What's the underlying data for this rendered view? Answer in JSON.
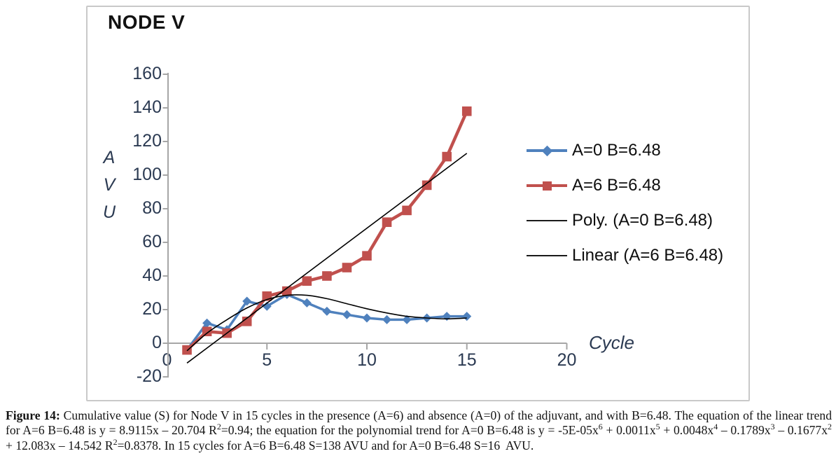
{
  "figure": {
    "caption": [
      {
        "t": "Figure 14:",
        "b": true
      },
      {
        "t": " Cumulative value (S) for Node V in 15 cycles in the presence (A=6) and absence (A=0) of the adjuvant, and with B=6.48. The equation of the linear trend for A=6 B=6.48 is y = 8.9115x – 20.704 R"
      },
      {
        "t": "2",
        "sup": true
      },
      {
        "t": "=0.94; the equation for the polynomial trend for A=0 B=6.48 is y = -5E-05x"
      },
      {
        "t": "6",
        "sup": true
      },
      {
        "t": " + 0.0011x"
      },
      {
        "t": "5",
        "sup": true
      },
      {
        "t": " + 0.0048x"
      },
      {
        "t": "4",
        "sup": true
      },
      {
        "t": " – 0.1789x"
      },
      {
        "t": "3",
        "sup": true
      },
      {
        "t": " – 0.1677x"
      },
      {
        "t": "2",
        "sup": true
      },
      {
        "t": " + 12.083x – 14.542 R"
      },
      {
        "t": "2",
        "sup": true
      },
      {
        "t": "=0.8378. In 15 cycles for A=6 B=6.48 S=138 AVU and for A=0 B=6.48 S=16  AVU."
      }
    ]
  },
  "chart_data": {
    "type": "line",
    "title": "NODE V",
    "xlabel": "Cycle",
    "ylabel": "AVU",
    "ylabel_letters": [
      "A",
      "V",
      "U"
    ],
    "xlim": [
      0,
      20
    ],
    "ylim": [
      -20,
      160
    ],
    "xticks": [
      0,
      5,
      10,
      15,
      20
    ],
    "yticks": [
      160,
      140,
      120,
      100,
      80,
      60,
      40,
      20,
      0,
      -20
    ],
    "grid": false,
    "legend_position": "right",
    "x": [
      1,
      2,
      3,
      4,
      5,
      6,
      7,
      8,
      9,
      10,
      11,
      12,
      13,
      14,
      15
    ],
    "series": [
      {
        "name": "A=0 B=6.48",
        "marker": "diamond",
        "color": "#4f81bd",
        "values": [
          -4,
          12,
          8,
          25,
          22,
          29,
          24,
          19,
          17,
          15,
          14,
          14,
          15,
          16,
          16
        ]
      },
      {
        "name": "A=6 B=6.48",
        "marker": "square",
        "color": "#c0504d",
        "values": [
          -4,
          7,
          6,
          13,
          28,
          31,
          37,
          40,
          45,
          52,
          72,
          79,
          94,
          111,
          138
        ]
      },
      {
        "name": "Poly. (A=0 B=6.48)",
        "marker": "none",
        "color": "#000000",
        "trend": "polynomial",
        "values": [
          -4.5,
          6,
          14,
          21,
          26,
          28.5,
          28.5,
          26.5,
          23.5,
          20.5,
          18,
          16,
          15,
          14.5,
          15
        ]
      },
      {
        "name": "Linear (A=6 B=6.48)",
        "marker": "none",
        "color": "#000000",
        "trend": "linear",
        "slope": 8.9115,
        "intercept": -20.704
      }
    ]
  },
  "colors": {
    "series_blue": "#4f81bd",
    "series_red": "#c0504d",
    "trendline": "#000000",
    "axis_line": "#a6a6a6",
    "axis_text": "#2b3a52",
    "frame_border": "#c9c9c9"
  }
}
